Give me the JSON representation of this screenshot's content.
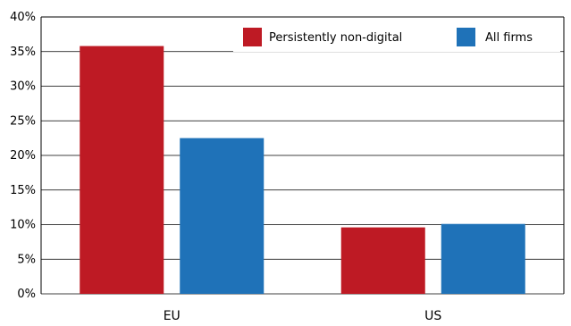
{
  "chart_data": {
    "type": "bar",
    "categories": [
      "EU",
      "US"
    ],
    "series": [
      {
        "name": "Persistently non-digital",
        "values": [
          35.8,
          9.6
        ],
        "color": "#be1a24"
      },
      {
        "name": "All firms",
        "values": [
          22.5,
          10.1
        ],
        "color": "#1f72b8"
      }
    ],
    "yticks": [
      "0%",
      "5%",
      "10%",
      "15%",
      "20%",
      "25%",
      "30%",
      "35%",
      "40%"
    ],
    "ylim": [
      0,
      40
    ],
    "grid": true,
    "legend_position": "top-right"
  }
}
